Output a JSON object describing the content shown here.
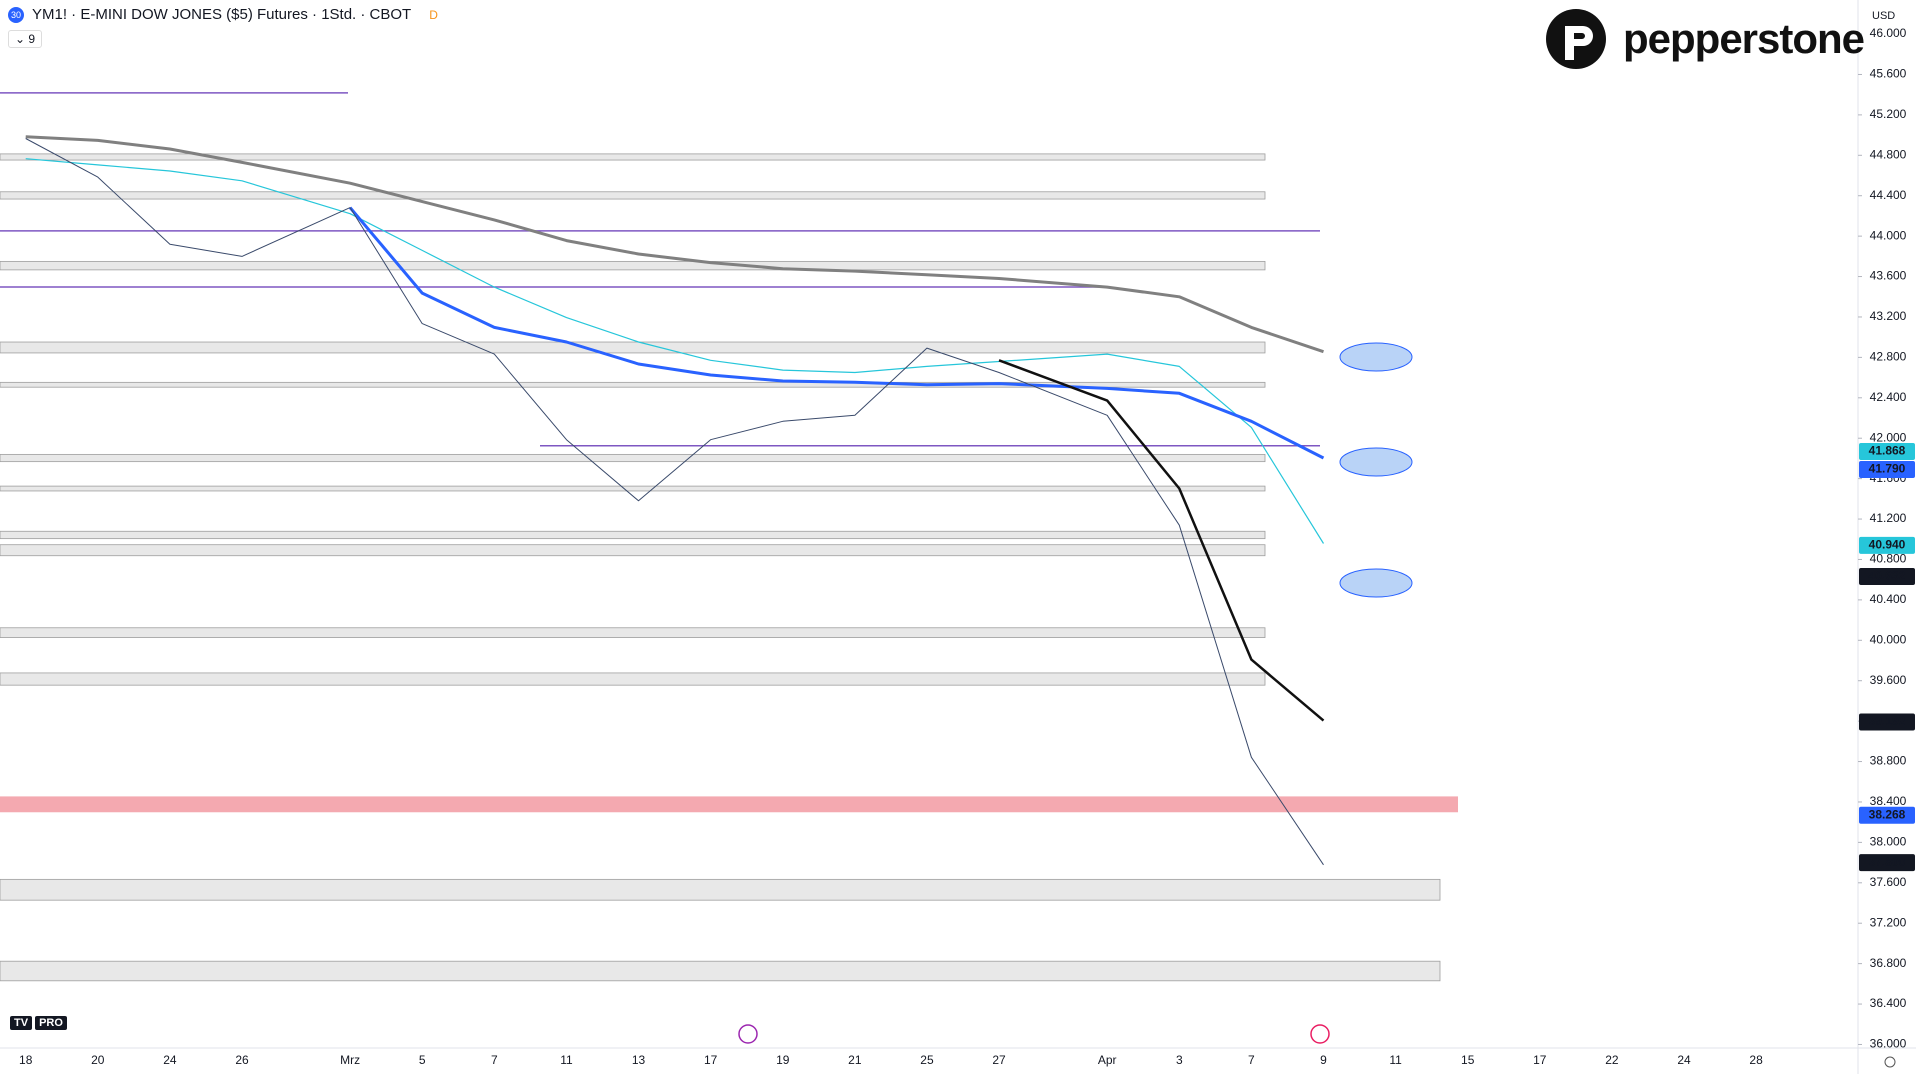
{
  "chart_data": {
    "type": "line",
    "symbol_badge": "30",
    "title": "YM1! · E-MINI DOW JONES ($5) Futures · 1Std. · CBOT",
    "interval_badge": "D",
    "indicator_count": "9",
    "brand": "pepperstone",
    "currency": "USD",
    "tv_badge": "PRO",
    "categories": [
      "18",
      "20",
      "24",
      "26",
      "Mrz",
      "5",
      "7",
      "11",
      "13",
      "17",
      "19",
      "21",
      "25",
      "27",
      "Apr",
      "3",
      "7",
      "9",
      "11",
      "15",
      "17",
      "22",
      "24",
      "28"
    ],
    "ylim": [
      35965,
      46337
    ],
    "yticks": [
      {
        "value": 36000,
        "label": "36.000"
      },
      {
        "value": 36400,
        "label": "36.400"
      },
      {
        "value": 36800,
        "label": "36.800"
      },
      {
        "value": 37200,
        "label": "37.200"
      },
      {
        "value": 37600,
        "label": "37.600"
      },
      {
        "value": 38000,
        "label": "38.000"
      },
      {
        "value": 38400,
        "label": "38.400"
      },
      {
        "value": 38800,
        "label": "38.800"
      },
      {
        "value": 39200,
        "label": "39.200"
      },
      {
        "value": 39600,
        "label": "39.600"
      },
      {
        "value": 40000,
        "label": "40.000"
      },
      {
        "value": 40400,
        "label": "40.400"
      },
      {
        "value": 40800,
        "label": "40.800"
      },
      {
        "value": 41200,
        "label": "41.200"
      },
      {
        "value": 41600,
        "label": "41.600"
      },
      {
        "value": 42000,
        "label": "42.000"
      },
      {
        "value": 42400,
        "label": "42.400"
      },
      {
        "value": 42800,
        "label": "42.800"
      },
      {
        "value": 43200,
        "label": "43.200"
      },
      {
        "value": 43600,
        "label": "43.600"
      },
      {
        "value": 44000,
        "label": "44.000"
      },
      {
        "value": 44400,
        "label": "44.400"
      },
      {
        "value": 44800,
        "label": "44.800"
      },
      {
        "value": 45200,
        "label": "45.200"
      },
      {
        "value": 45600,
        "label": "45.600"
      },
      {
        "value": 46000,
        "label": "46.000"
      }
    ],
    "series": [
      {
        "color": "#808080",
        "width": 3,
        "values": [
          44983,
          44947,
          44862,
          44730,
          44524,
          44342,
          44161,
          43956,
          43823,
          43738,
          43678,
          43654,
          43617,
          43581,
          43496,
          43400,
          43097,
          42856,
          null,
          null,
          null,
          null,
          null,
          null
        ]
      },
      {
        "color": "#26c6da",
        "width": 1.2,
        "values": [
          44766,
          44705,
          44645,
          44548,
          44222,
          43859,
          43496,
          43194,
          42952,
          42771,
          42674,
          42650,
          42711,
          42759,
          42832,
          42711,
          42107,
          40958,
          null,
          null,
          null,
          null,
          null,
          null
        ]
      },
      {
        "color": "#2962ff",
        "width": 3,
        "values": [
          null,
          null,
          null,
          null,
          44282,
          43436,
          43097,
          42952,
          42735,
          42626,
          42566,
          42554,
          42529,
          42541,
          42493,
          42445,
          42167,
          41804,
          null,
          null,
          null,
          null,
          null,
          null
        ]
      },
      {
        "color": "#111111",
        "width": 2.5,
        "values": [
          null,
          null,
          null,
          null,
          null,
          null,
          null,
          null,
          null,
          null,
          null,
          null,
          null,
          42771,
          42372,
          41502,
          39809,
          39205,
          null,
          null,
          null,
          null,
          null,
          null
        ]
      },
      {
        "color": "#3a4a6b",
        "width": 1,
        "values": [
          44966,
          44584,
          43919,
          43799,
          44282,
          43134,
          42832,
          41985,
          41381,
          41985,
          42167,
          42227,
          42892,
          42650,
          42227,
          41139,
          38842,
          37778,
          null,
          null,
          null,
          null,
          null,
          null
        ]
      }
    ],
    "zones": [
      [
        44753,
        44814
      ],
      [
        44367,
        44439
      ],
      [
        43666,
        43750
      ],
      [
        42844,
        42952
      ],
      [
        42505,
        42553
      ],
      [
        41768,
        41840
      ],
      [
        41478,
        41526
      ],
      [
        41006,
        41079
      ],
      [
        40837,
        40946
      ],
      [
        40027,
        40124
      ],
      [
        39556,
        39677
      ],
      [
        37428,
        37634
      ],
      [
        36630,
        36824
      ]
    ],
    "zone_color": "#e8e8e8",
    "red_zone": [
      38298,
      38455
    ],
    "red_zone_color": "#f4a9b0",
    "levels": [
      45418,
      44052,
      43496,
      41925
    ],
    "level_color": "#7e57c2",
    "price_labels": [
      {
        "value": 41868,
        "label": "41.868",
        "color": "#26c6da"
      },
      {
        "value": 41790,
        "label": "41.790",
        "color": "#2962ff"
      },
      {
        "value": 40940,
        "label": "40.940",
        "color": "#26c6da"
      },
      {
        "value": 40632,
        "label": "40.632",
        "color": "#131722"
      },
      {
        "value": 39192,
        "label": "39.192",
        "color": "#131722"
      },
      {
        "value": 38268,
        "label": "38.268",
        "color": "#2962ff"
      },
      {
        "value": 37800,
        "label": "37.800",
        "color": "#131722"
      }
    ]
  }
}
